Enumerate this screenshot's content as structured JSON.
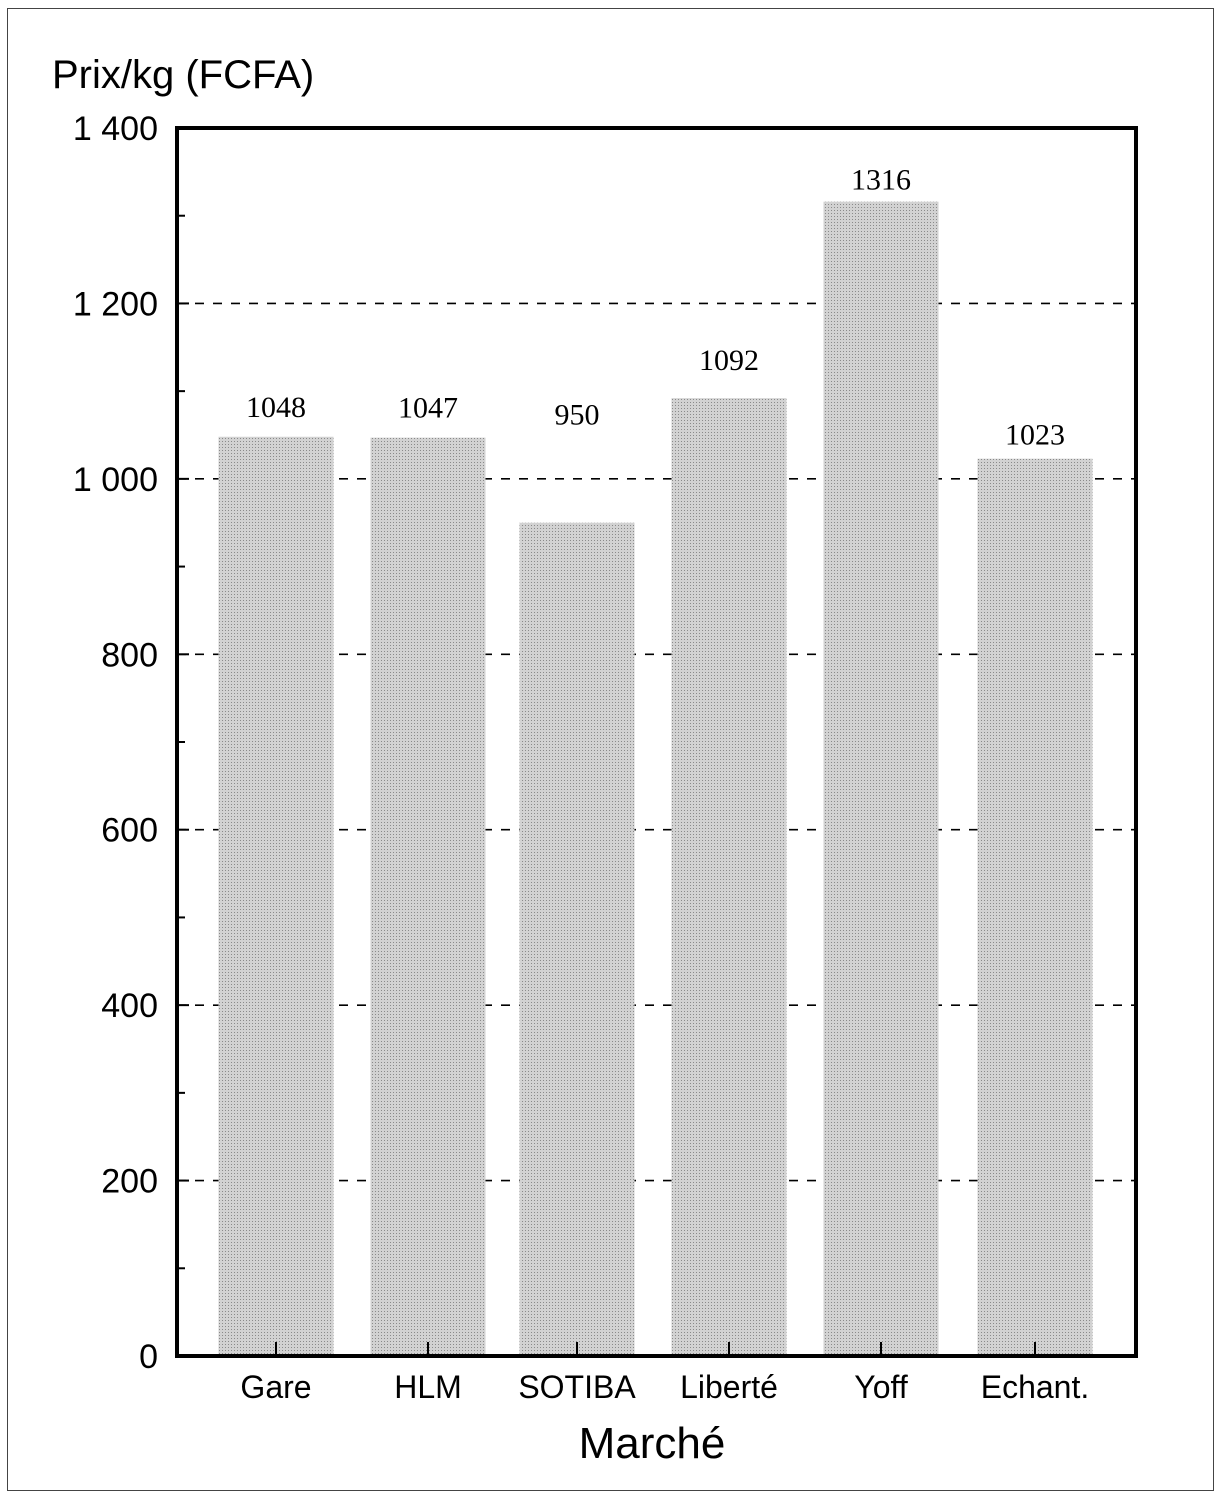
{
  "chart_data": {
    "type": "bar",
    "title": "",
    "ylabel": "Prix/kg (FCFA)",
    "xlabel": "Marché",
    "categories": [
      "Gare",
      "HLM",
      "SOTIBA",
      "Liberté",
      "Yoff",
      "Echant."
    ],
    "values": [
      1048,
      1047,
      950,
      1092,
      1316,
      1023
    ],
    "data_labels": [
      "1048",
      "1047",
      "950",
      "1092",
      "1316",
      "1023"
    ],
    "ylim": [
      0,
      1400
    ],
    "yticks": [
      0,
      200,
      400,
      600,
      800,
      1000,
      1200,
      1400
    ],
    "ytick_labels": [
      "0",
      "200",
      "400",
      "600",
      "800",
      "1 000",
      "1 200",
      "1 400"
    ],
    "grid": "dashed horizontal at major ticks",
    "bar_color": "#c4c4c4"
  }
}
